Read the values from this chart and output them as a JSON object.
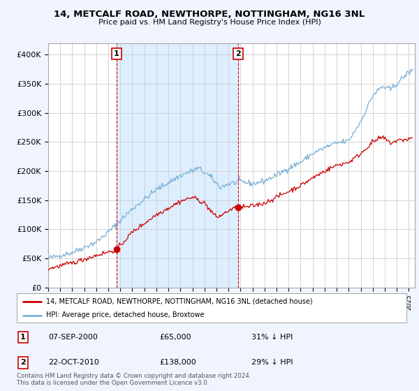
{
  "title": "14, METCALF ROAD, NEWTHORPE, NOTTINGHAM, NG16 3NL",
  "subtitle": "Price paid vs. HM Land Registry's House Price Index (HPI)",
  "ylabel_ticks": [
    "£0",
    "£50K",
    "£100K",
    "£150K",
    "£200K",
    "£250K",
    "£300K",
    "£350K",
    "£400K"
  ],
  "ytick_values": [
    0,
    50000,
    100000,
    150000,
    200000,
    250000,
    300000,
    350000,
    400000
  ],
  "ylim": [
    0,
    420000
  ],
  "xlim_start": 1995.0,
  "xlim_end": 2025.5,
  "hpi_color": "#7bafd4",
  "price_color": "#cc0000",
  "shade_color": "#ddeeff",
  "bg_color": "#f0f4ff",
  "plot_bg": "#ffffff",
  "grid_color": "#cccccc",
  "legend_label_red": "14, METCALF ROAD, NEWTHORPE, NOTTINGHAM, NG16 3NL (detached house)",
  "legend_label_blue": "HPI: Average price, detached house, Broxtowe",
  "marker1_year": 2000.69,
  "marker1_price": 65000,
  "marker1_label": "1",
  "marker2_year": 2010.81,
  "marker2_price": 138000,
  "marker2_label": "2",
  "annotation1_date": "07-SEP-2000",
  "annotation1_price": "£65,000",
  "annotation1_hpi": "31% ↓ HPI",
  "annotation2_date": "22-OCT-2010",
  "annotation2_price": "£138,000",
  "annotation2_hpi": "29% ↓ HPI",
  "footer": "Contains HM Land Registry data © Crown copyright and database right 2024.\nThis data is licensed under the Open Government Licence v3.0."
}
